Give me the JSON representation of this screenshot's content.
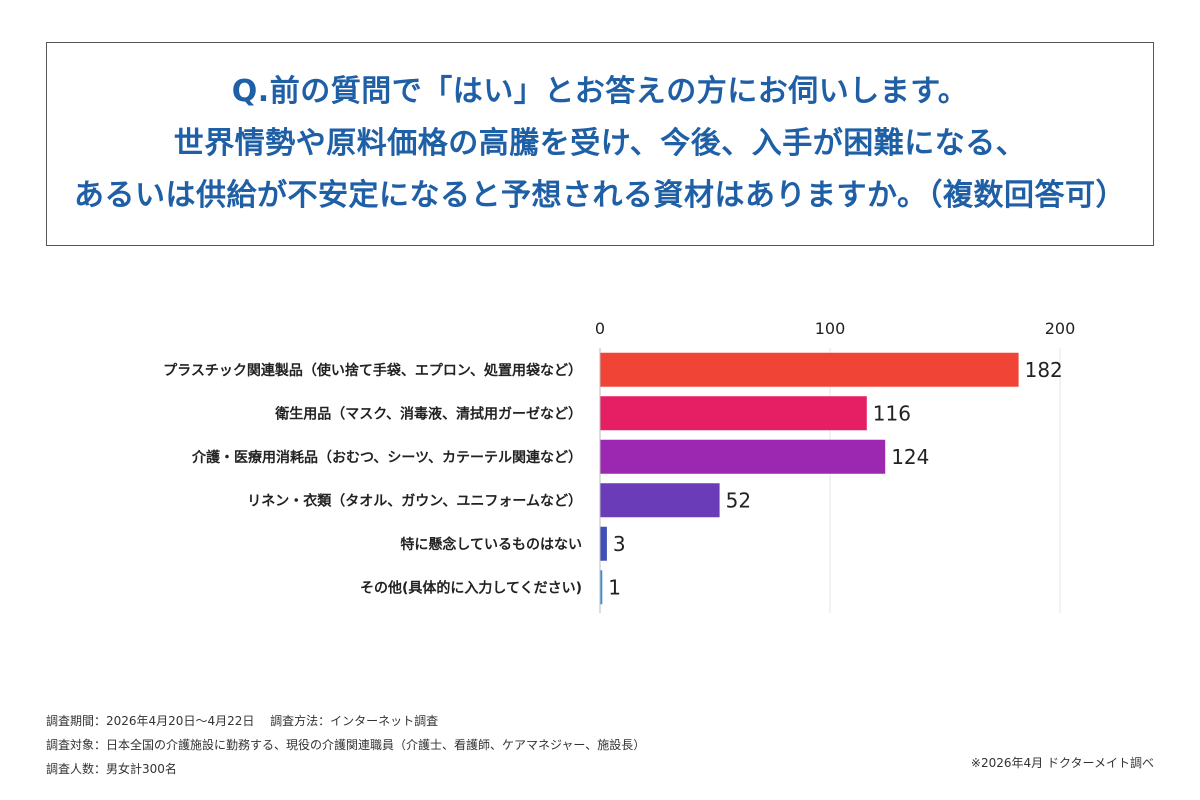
{
  "question": {
    "lines": [
      "Q.前の質問で「はい」とお答えの方にお伺いします。",
      "世界情勢や原料価格の高騰を受け、今後、入手が困難になる、",
      "あるいは供給が不安定になると予想される資材はありますか。（複数回答可）"
    ]
  },
  "chart_data": {
    "type": "bar",
    "orientation": "horizontal",
    "title": "",
    "xlabel": "",
    "ylabel": "",
    "xlim": [
      0,
      200
    ],
    "ticks": [
      0,
      100,
      200
    ],
    "tick_labels": [
      "0",
      "100",
      "200"
    ],
    "grid": true,
    "categories": [
      "プラスチック関連製品（使い捨て手袋、エプロン、処置用袋など）",
      "衛生用品（マスク、消毒液、清拭用ガーゼなど）",
      "介護・医療用消耗品（おむつ、シーツ、カテーテル関連など）",
      "リネン・衣類（タオル、ガウン、ユニフォームなど）",
      "特に懸念しているものはない",
      "その他(具体的に入力してください)"
    ],
    "values": [
      182,
      116,
      124,
      52,
      3,
      1
    ],
    "value_labels": [
      "182",
      "116",
      "124",
      "52",
      "3",
      "1"
    ],
    "colors": [
      "#f04437",
      "#e61e64",
      "#9c27b0",
      "#6a3cb8",
      "#3f51b5",
      "#3b8fd6"
    ]
  },
  "footer": {
    "period": "調査期間：2026年4月20日～4月22日　 調査方法：インターネット調査",
    "target": "調査対象：日本全国の介護施設に勤務する、現役の介護関連職員（介護士、看護師、ケアマネジャー、施設長）",
    "count": "調査人数：男女計300名",
    "credit": "※2026年4月 ドクターメイト調べ"
  }
}
